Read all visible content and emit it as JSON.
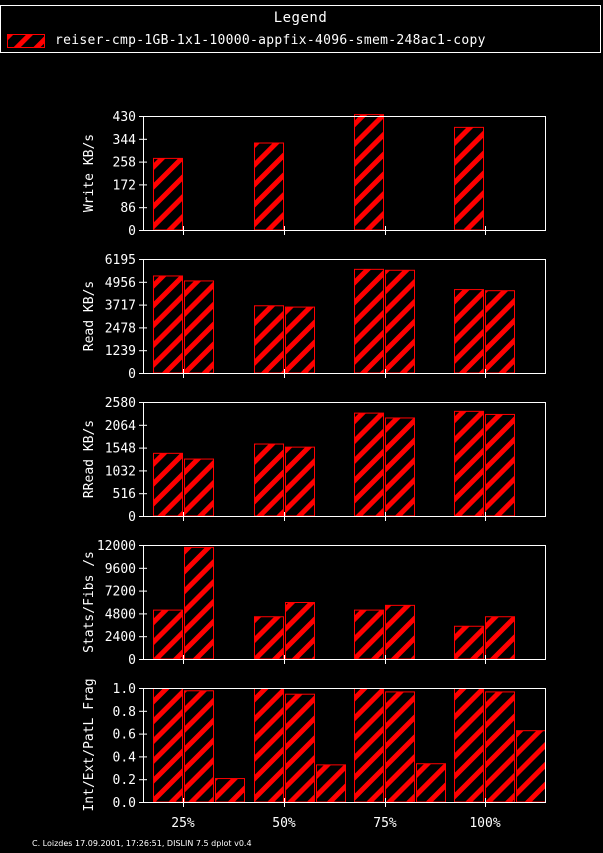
{
  "legend": {
    "title": "Legend",
    "entries": [
      {
        "label": "reiser-cmp-1GB-1x1-10000-appfix-4096-smem-248ac1-copy",
        "color": "#ff0000"
      }
    ]
  },
  "footer": "C. Loizdes 17.09.2001, 17:26:51, DISLIN 7.5 dplot v0.4",
  "colors": {
    "bar": "#ff0000",
    "axis": "#ffffff",
    "background": "#000000"
  },
  "chart_data": [
    {
      "type": "bar",
      "ylabel": "Write KB/s",
      "ylim": [
        0,
        430
      ],
      "yticks": [
        "0",
        "86",
        "172",
        "258",
        "344",
        "430"
      ],
      "categories": [
        "25%",
        "50%",
        "75%",
        "100%"
      ],
      "show_xtick_labels": false,
      "series": [
        {
          "values": [
            272,
            330,
            437,
            389
          ]
        }
      ]
    },
    {
      "type": "bar",
      "ylabel": "Read KB/s",
      "ylim": [
        0,
        6195
      ],
      "yticks": [
        "0",
        "1239",
        "2478",
        "3717",
        "4956",
        "6195"
      ],
      "categories": [
        "25%",
        "50%",
        "75%",
        "100%"
      ],
      "show_xtick_labels": false,
      "series": [
        {
          "values": [
            5300,
            3680,
            5660,
            4560
          ]
        },
        {
          "values": [
            5030,
            3610,
            5610,
            4500
          ]
        }
      ]
    },
    {
      "type": "bar",
      "ylabel": "RRead KB/s",
      "ylim": [
        0,
        2580
      ],
      "yticks": [
        "0",
        "516",
        "1032",
        "1548",
        "2064",
        "2580"
      ],
      "categories": [
        "25%",
        "50%",
        "75%",
        "100%"
      ],
      "show_xtick_labels": false,
      "series": [
        {
          "values": [
            1430,
            1640,
            2340,
            2380
          ]
        },
        {
          "values": [
            1300,
            1570,
            2230,
            2310
          ]
        }
      ]
    },
    {
      "type": "bar",
      "ylabel": "Stats/Fibs /s",
      "ylim": [
        0,
        12000
      ],
      "yticks": [
        "0",
        "2400",
        "4800",
        "7200",
        "9600",
        "12000"
      ],
      "categories": [
        "25%",
        "50%",
        "75%",
        "100%"
      ],
      "show_xtick_labels": false,
      "series": [
        {
          "values": [
            5200,
            4500,
            5200,
            3500
          ]
        },
        {
          "values": [
            11800,
            6000,
            5700,
            4500
          ]
        }
      ]
    },
    {
      "type": "bar",
      "ylabel": "Int/Ext/PatL Frag",
      "ylim": [
        0,
        1.0
      ],
      "yticks": [
        "0.0",
        "0.2",
        "0.4",
        "0.6",
        "0.8",
        "1.0"
      ],
      "categories": [
        "25%",
        "50%",
        "75%",
        "100%"
      ],
      "show_xtick_labels": true,
      "series": [
        {
          "values": [
            1.0,
            1.0,
            1.0,
            1.0
          ]
        },
        {
          "values": [
            0.98,
            0.95,
            0.97,
            0.97
          ]
        },
        {
          "values": [
            0.21,
            0.33,
            0.34,
            0.63
          ]
        }
      ]
    }
  ]
}
